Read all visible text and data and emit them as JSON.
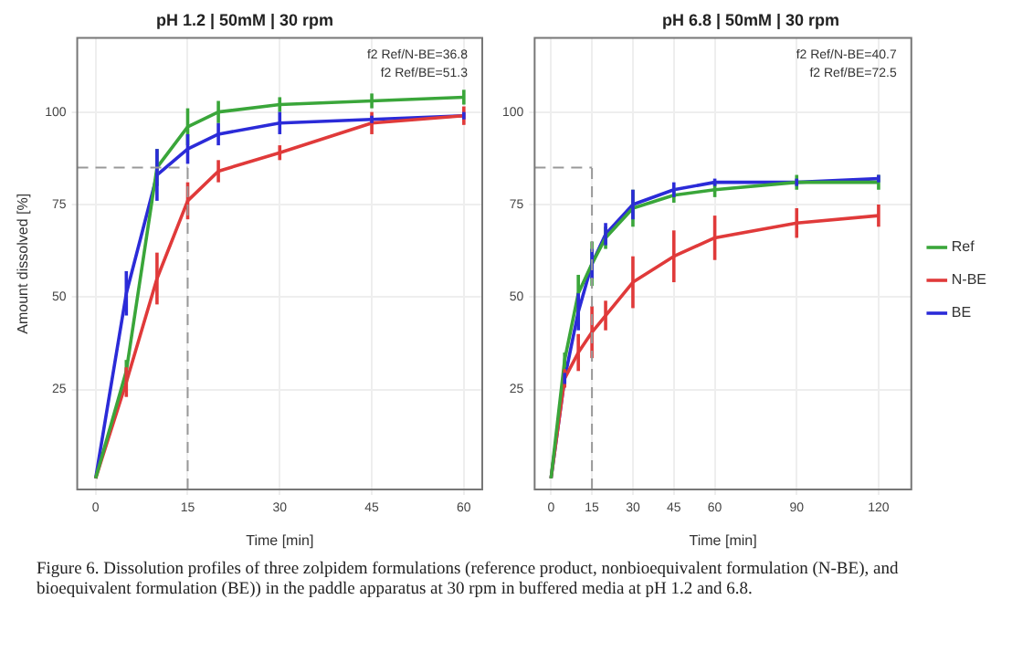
{
  "chart_data": [
    {
      "type": "line",
      "title": "pH 1.2 | 50mM | 30 rpm",
      "xlabel": "Time [min]",
      "ylabel": "Amount dissolved [%]",
      "x": [
        0,
        5,
        10,
        15,
        20,
        30,
        45,
        60
      ],
      "series": [
        {
          "color": "#3aa63a",
          "values": [
            1,
            30,
            85,
            96,
            100,
            102,
            103,
            104
          ],
          "errors": [
            null,
            3,
            5,
            5,
            3,
            2,
            2,
            2
          ]
        },
        {
          "color": "#e03a3a",
          "values": [
            1,
            27,
            55,
            76,
            84,
            89,
            97,
            99
          ],
          "errors": [
            null,
            4,
            7,
            5,
            3,
            2,
            3,
            2.5
          ]
        },
        {
          "color": "#2b2bd8",
          "values": [
            1,
            51,
            83,
            90,
            94,
            97,
            98,
            99
          ],
          "errors": [
            null,
            6,
            7,
            4,
            3,
            3,
            1,
            1
          ]
        }
      ],
      "xlim": [
        -3,
        63
      ],
      "xticks": [
        0,
        15,
        30,
        45,
        60
      ],
      "ylim": [
        -2,
        120
      ],
      "yticks": [
        25,
        50,
        75,
        100
      ],
      "ref_lines": [
        {
          "axis": "y",
          "value": 85,
          "color": "#999999",
          "line_style": "dashed"
        },
        {
          "axis": "x",
          "value": 15,
          "color": "#999999",
          "line_style": "dashed"
        }
      ],
      "annotations": [
        "f2 Ref/N-BE=36.8",
        "f2 Ref/BE=51.3"
      ],
      "grid": true,
      "legend": false,
      "marker": "none",
      "line_style": "solid"
    },
    {
      "type": "line",
      "title": "pH 6.8 | 50mM | 30 rpm",
      "xlabel": "Time [min]",
      "x": [
        0,
        5,
        10,
        15,
        20,
        30,
        45,
        60,
        90,
        120
      ],
      "series": [
        {
          "name": "Ref",
          "color": "#3aa63a",
          "values": [
            1,
            33,
            51,
            59,
            66,
            74,
            77.5,
            79,
            81,
            81
          ],
          "errors": [
            null,
            2,
            5,
            6,
            3,
            5,
            2,
            2,
            2,
            2
          ]
        },
        {
          "name": "N-BE",
          "color": "#e03a3a",
          "values": [
            1,
            28,
            35,
            40.5,
            45,
            54,
            61,
            66,
            70,
            72
          ],
          "errors": [
            null,
            2.5,
            5,
            7,
            4,
            7,
            7,
            6,
            4,
            3
          ]
        },
        {
          "name": "BE",
          "color": "#2b2bd8",
          "values": [
            1,
            28,
            46,
            59,
            67,
            75,
            79,
            81,
            81,
            82
          ],
          "errors": [
            null,
            1.5,
            5,
            4,
            3,
            4,
            2,
            1,
            1,
            1
          ]
        }
      ],
      "xlim": [
        -6,
        132
      ],
      "xticks": [
        0,
        15,
        30,
        45,
        60,
        90,
        120
      ],
      "ylim": [
        -2,
        120
      ],
      "yticks": [
        25,
        50,
        75,
        100
      ],
      "ref_lines": [
        {
          "axis": "y",
          "value": 85,
          "color": "#999999",
          "line_style": "dashed"
        },
        {
          "axis": "x",
          "value": 15,
          "color": "#999999",
          "line_style": "dashed"
        }
      ],
      "annotations": [
        "f2 Ref/N-BE=40.7",
        "f2 Ref/BE=72.5"
      ],
      "grid": true,
      "legend": "right",
      "marker": "none",
      "line_style": "solid"
    },
    {
      "type": "other",
      "annotations": [
        "Figure 6. Dissolution profiles of three zolpidem formulations (reference product, nonbioequivalent formulation (N-BE), and bioequivalent formulation (BE)) in the paddle apparatus at 30 rpm in buffered media at pH 1.2 and 6.8."
      ]
    }
  ]
}
